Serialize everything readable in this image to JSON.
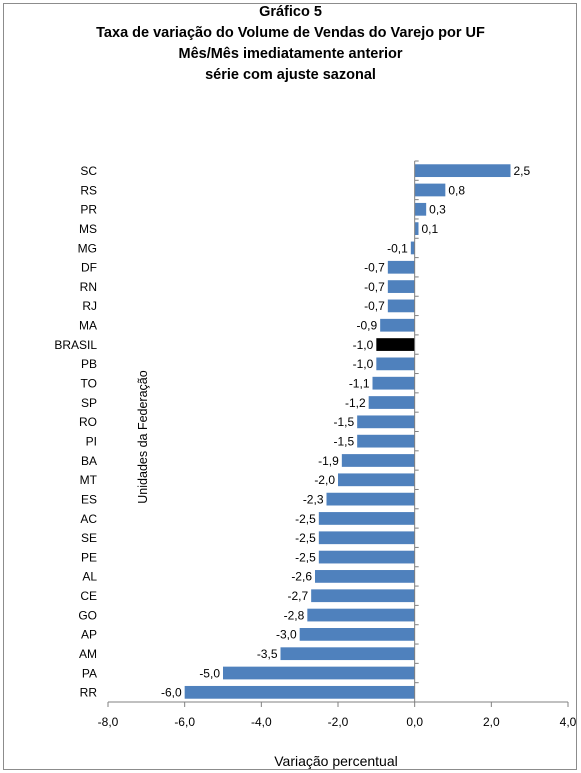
{
  "chart_data": {
    "type": "bar",
    "orientation": "horizontal",
    "title_lines": [
      "Gráfico 5",
      "Taxa de variação do Volume de Vendas do Varejo por UF",
      "Mês/Mês imediatamente anterior",
      "série com ajuste sazonal"
    ],
    "xlabel": "Variação percentual",
    "ylabel": "Unidades da Federação",
    "xlim": [
      -8,
      4
    ],
    "xticks": [
      "-8,0",
      "-6,0",
      "-4,0",
      "-2,0",
      "0,0",
      "2,0",
      "4,0"
    ],
    "categories": [
      "SC",
      "RS",
      "PR",
      "MS",
      "MG",
      "DF",
      "RN",
      "RJ",
      "MA",
      "BRASIL",
      "PB",
      "TO",
      "SP",
      "RO",
      "PI",
      "BA",
      "MT",
      "ES",
      "AC",
      "SE",
      "PE",
      "AL",
      "CE",
      "GO",
      "AP",
      "AM",
      "PA",
      "RR"
    ],
    "values": [
      2.5,
      0.8,
      0.3,
      0.1,
      -0.1,
      -0.7,
      -0.7,
      -0.7,
      -0.9,
      -1.0,
      -1.0,
      -1.1,
      -1.2,
      -1.5,
      -1.5,
      -1.9,
      -2.0,
      -2.3,
      -2.5,
      -2.5,
      -2.5,
      -2.6,
      -2.7,
      -2.8,
      -3.0,
      -3.5,
      -5.0,
      -6.0
    ],
    "value_labels": [
      "2,5",
      "0,8",
      "0,3",
      "0,1",
      "-0,1",
      "-0,7",
      "-0,7",
      "-0,7",
      "-0,9",
      "-1,0",
      "-1,0",
      "-1,1",
      "-1,2",
      "-1,5",
      "-1,5",
      "-1,9",
      "-2,0",
      "-2,3",
      "-2,5",
      "-2,5",
      "-2,5",
      "-2,6",
      "-2,7",
      "-2,8",
      "-3,0",
      "-3,5",
      "-5,0",
      "-6,0"
    ],
    "highlight_category": "BRASIL",
    "colors": {
      "bar": "#4f81bd",
      "highlight": "#000000",
      "axis": "#808080"
    },
    "grid": false,
    "legend": "none"
  }
}
